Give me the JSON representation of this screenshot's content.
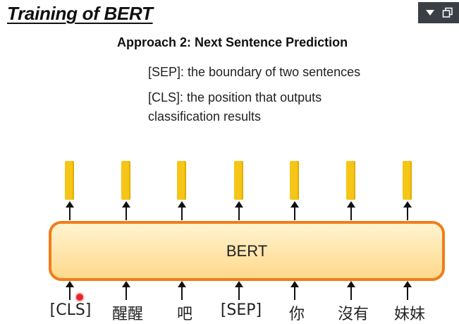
{
  "slide": {
    "title": "Training of BERT",
    "subtitle": "Approach 2: Next Sentence Prediction",
    "desc_sep": "[SEP]: the boundary of two sentences",
    "desc_cls": "[CLS]: the position that outputs classification results",
    "model_label": "BERT",
    "tokens": [
      "[CLS]",
      "醒醒",
      "吧",
      "[SEP]",
      "你",
      "沒有",
      "妹妹"
    ]
  },
  "window_controls": {
    "menu_icon": "triangle-down-icon",
    "restore_icon": "restore-window-icon"
  },
  "colors": {
    "output_bar": "#f5c518",
    "model_border": "#f07d1a",
    "model_fill_top": "#fff3cf",
    "model_fill_bottom": "#ffd98c",
    "cursor_marker": "#e5252a"
  }
}
